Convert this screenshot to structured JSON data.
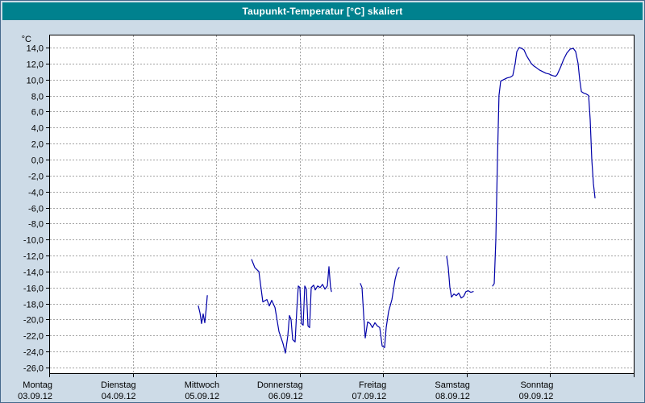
{
  "title": "Taupunkt-Temperatur [°C] skaliert",
  "chart_data": {
    "type": "line",
    "title": "Taupunkt-Temperatur [°C] skaliert",
    "xlabel": "",
    "ylabel": "°C",
    "ylim": [
      -26,
      14
    ],
    "ytick_step": 2,
    "grid": true,
    "legend": false,
    "x_axis_note": "x in days from Montag 03.09.12 00:00, axis spans 7 days",
    "colors": {
      "page_bg": "#cddbe7",
      "titlebar_bg": "#00818e",
      "titlebar_text": "#ffffff",
      "plot_bg": "#ffffff",
      "grid": "#a3a3a3",
      "axis": "#000000",
      "line": "#0000a8"
    },
    "ytick_labels": [
      "14,0",
      "12,0",
      "10,0",
      "8,0",
      "6,0",
      "4,0",
      "2,0",
      "0,0",
      "-2,0",
      "-4,0",
      "-6,0",
      "-8,0",
      "-10,0",
      "-12,0",
      "-14,0",
      "-16,0",
      "-18,0",
      "-20,0",
      "-22,0",
      "-24,0",
      "-26,0"
    ],
    "x_days": [
      {
        "name": "Montag",
        "date": "03.09.12"
      },
      {
        "name": "Dienstag",
        "date": "04.09.12"
      },
      {
        "name": "Mittwoch",
        "date": "05.09.12"
      },
      {
        "name": "Donnerstag",
        "date": "06.09.12"
      },
      {
        "name": "Freitag",
        "date": "07.09.12"
      },
      {
        "name": "Samstag",
        "date": "08.09.12"
      },
      {
        "name": "Sonntag",
        "date": "09.09.12"
      }
    ],
    "series": [
      {
        "name": "Taupunkt-Temperatur [°C] skaliert",
        "color": "#0000a8",
        "segments": [
          [
            [
              1.786,
              -18.3
            ],
            [
              1.806,
              -19.2
            ],
            [
              1.825,
              -20.5
            ],
            [
              1.844,
              -19.3
            ],
            [
              1.863,
              -20.4
            ],
            [
              1.883,
              -18.4
            ],
            [
              1.893,
              -17.0
            ]
          ],
          [
            [
              2.424,
              -12.5
            ],
            [
              2.462,
              -13.5
            ],
            [
              2.511,
              -14.0
            ],
            [
              2.559,
              -17.8
            ],
            [
              2.607,
              -17.5
            ],
            [
              2.636,
              -18.3
            ],
            [
              2.665,
              -17.6
            ],
            [
              2.704,
              -18.5
            ],
            [
              2.752,
              -21.5
            ],
            [
              2.8,
              -23.0
            ],
            [
              2.829,
              -24.2
            ],
            [
              2.858,
              -22.0
            ],
            [
              2.877,
              -19.5
            ],
            [
              2.897,
              -20.0
            ],
            [
              2.916,
              -22.5
            ],
            [
              2.945,
              -22.8
            ],
            [
              2.964,
              -19.0
            ],
            [
              2.983,
              -15.8
            ],
            [
              3.003,
              -16.0
            ],
            [
              3.022,
              -20.5
            ],
            [
              3.041,
              -20.7
            ],
            [
              3.061,
              -15.8
            ],
            [
              3.08,
              -16.2
            ],
            [
              3.099,
              -20.8
            ],
            [
              3.119,
              -21.0
            ],
            [
              3.138,
              -16.0
            ],
            [
              3.167,
              -15.7
            ],
            [
              3.186,
              -16.3
            ],
            [
              3.215,
              -15.8
            ],
            [
              3.244,
              -16.0
            ],
            [
              3.273,
              -15.6
            ],
            [
              3.302,
              -16.2
            ],
            [
              3.331,
              -15.8
            ],
            [
              3.35,
              -13.4
            ],
            [
              3.37,
              -16.0
            ],
            [
              3.38,
              -16.5
            ]
          ],
          [
            [
              3.727,
              -15.5
            ],
            [
              3.746,
              -16.0
            ],
            [
              3.766,
              -19.5
            ],
            [
              3.785,
              -22.3
            ],
            [
              3.814,
              -20.3
            ],
            [
              3.843,
              -20.5
            ],
            [
              3.872,
              -21.0
            ],
            [
              3.901,
              -20.4
            ],
            [
              3.93,
              -20.8
            ],
            [
              3.959,
              -21.0
            ],
            [
              3.988,
              -23.3
            ],
            [
              4.017,
              -23.5
            ],
            [
              4.036,
              -21.0
            ],
            [
              4.065,
              -19.0
            ],
            [
              4.104,
              -17.5
            ],
            [
              4.142,
              -15.0
            ],
            [
              4.171,
              -13.8
            ],
            [
              4.19,
              -13.5
            ]
          ],
          [
            [
              4.76,
              -12.1
            ],
            [
              4.779,
              -13.5
            ],
            [
              4.799,
              -16.0
            ],
            [
              4.818,
              -17.2
            ],
            [
              4.847,
              -16.8
            ],
            [
              4.876,
              -17.0
            ],
            [
              4.905,
              -16.7
            ],
            [
              4.934,
              -17.3
            ],
            [
              4.963,
              -17.1
            ],
            [
              4.992,
              -16.5
            ],
            [
              5.021,
              -16.4
            ],
            [
              5.05,
              -16.6
            ],
            [
              5.079,
              -16.5
            ]
          ],
          [
            [
              5.31,
              -15.8
            ],
            [
              5.33,
              -15.5
            ],
            [
              5.349,
              -10.0
            ],
            [
              5.368,
              0.0
            ],
            [
              5.387,
              8.0
            ],
            [
              5.407,
              9.8
            ],
            [
              5.445,
              10.0
            ],
            [
              5.484,
              10.2
            ],
            [
              5.523,
              10.3
            ],
            [
              5.552,
              10.5
            ],
            [
              5.581,
              12.0
            ],
            [
              5.6,
              13.5
            ],
            [
              5.629,
              14.0
            ],
            [
              5.658,
              13.9
            ],
            [
              5.687,
              13.7
            ],
            [
              5.716,
              13.0
            ],
            [
              5.745,
              12.5
            ],
            [
              5.774,
              12.0
            ],
            [
              5.803,
              11.7
            ],
            [
              5.832,
              11.5
            ],
            [
              5.87,
              11.2
            ],
            [
              5.909,
              11.0
            ],
            [
              5.948,
              10.8
            ],
            [
              5.986,
              10.7
            ],
            [
              6.025,
              10.5
            ],
            [
              6.064,
              10.4
            ],
            [
              6.083,
              10.6
            ],
            [
              6.122,
              11.5
            ],
            [
              6.16,
              12.5
            ],
            [
              6.199,
              13.3
            ],
            [
              6.238,
              13.8
            ],
            [
              6.276,
              13.9
            ],
            [
              6.305,
              13.5
            ],
            [
              6.334,
              12.0
            ],
            [
              6.353,
              10.0
            ],
            [
              6.373,
              8.5
            ],
            [
              6.402,
              8.3
            ],
            [
              6.431,
              8.2
            ],
            [
              6.46,
              8.0
            ],
            [
              6.479,
              5.0
            ],
            [
              6.498,
              0.0
            ],
            [
              6.517,
              -3.0
            ],
            [
              6.537,
              -4.8
            ]
          ]
        ]
      }
    ]
  }
}
